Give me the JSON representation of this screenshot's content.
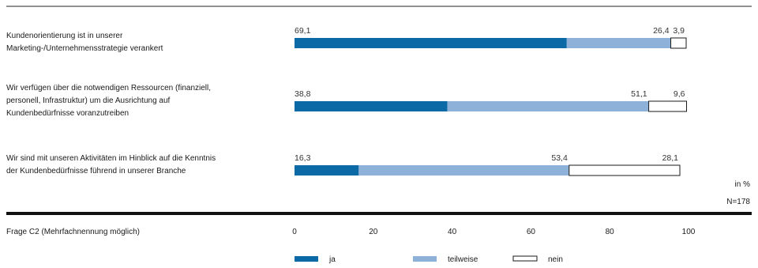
{
  "chart_data": {
    "type": "bar",
    "orientation": "horizontal",
    "stacked": true,
    "categories": [
      "Kundenorientierung ist in unserer Marketing-/Unternehmensstrategie verankert",
      "Wir verfügen über die notwendigen Ressourcen (finanziell, personell, Infrastruktur) um die Ausrichtung auf Kundenbedürfnisse voranzutreiben",
      "Wir sind mit unseren Aktivitäten im Hinblick auf die Kenntnis der Kundenbedürfnisse führend in unserer Branche"
    ],
    "category_lines": [
      [
        "Kundenorientierung ist in unserer",
        "Marketing-/Unternehmensstrategie verankert"
      ],
      [
        "Wir verfügen über die notwendigen Ressourcen (finanziell,",
        "personell, Infrastruktur) um die Ausrichtung auf",
        "Kundenbedürfnisse voranzutreiben"
      ],
      [
        "Wir sind mit unseren Aktivitäten im Hinblick auf die Kenntnis",
        "der Kundenbedürfnisse führend in unserer Branche"
      ]
    ],
    "series": [
      {
        "name": "ja",
        "values": [
          69.1,
          38.8,
          16.3
        ],
        "labels": [
          "69,1",
          "38,8",
          "16,3"
        ],
        "color": "#0b6aa6"
      },
      {
        "name": "teilweise",
        "values": [
          26.4,
          51.1,
          53.4
        ],
        "labels": [
          "26,4",
          "51,1",
          "53,4"
        ],
        "color": "#8eb1d9"
      },
      {
        "name": "nein",
        "values": [
          3.9,
          9.6,
          28.1
        ],
        "labels": [
          "3,9",
          "9,6",
          "28,1"
        ],
        "color": "#ffffff"
      }
    ],
    "xlim": [
      0,
      100
    ],
    "xticks": [
      "0",
      "20",
      "40",
      "60",
      "80",
      "100"
    ],
    "xlabel": "Frage C2 (Mehrfachnennung möglich)",
    "unit": "in %",
    "sample": "N=178",
    "legend_position": "bottom"
  }
}
